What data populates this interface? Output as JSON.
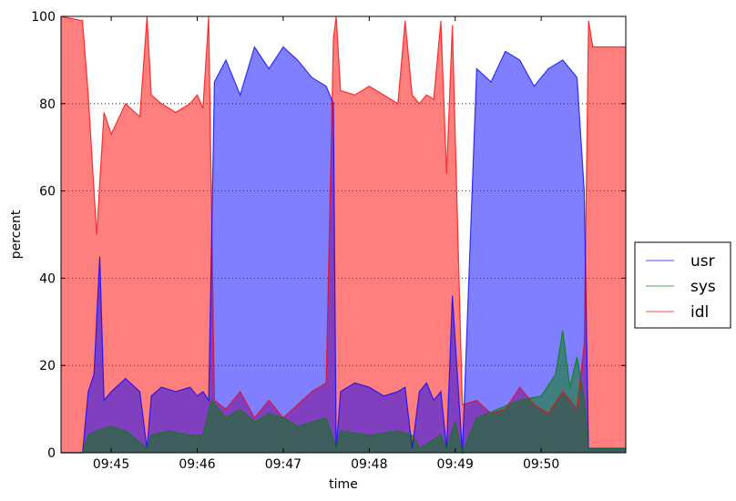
{
  "chart_data": {
    "type": "area",
    "title": "",
    "xlabel": "time",
    "ylabel": "percent",
    "ylim": [
      0,
      100
    ],
    "y_ticks": [
      "0",
      "20",
      "40",
      "60",
      "80",
      "100"
    ],
    "y_tick_values": [
      0,
      20,
      40,
      60,
      80,
      100
    ],
    "x_ticks": [
      "09:45",
      "09:46",
      "09:47",
      "09:48",
      "09:49",
      "09:50"
    ],
    "x_tick_values": [
      "09:45:00",
      "09:46:00",
      "09:47:00",
      "09:48:00",
      "09:49:00",
      "09:50:00"
    ],
    "xlim": [
      "09:44:25",
      "09:50:59"
    ],
    "grid": "horizontal dotted",
    "legend_position": "outside right",
    "series": [
      {
        "name": "usr",
        "color": "#0000ff",
        "x": [
          "09:44:25",
          "09:44:40",
          "09:44:44",
          "09:44:48",
          "09:44:52",
          "09:44:55",
          "09:45:00",
          "09:45:10",
          "09:45:20",
          "09:45:25",
          "09:45:28",
          "09:45:35",
          "09:45:45",
          "09:45:55",
          "09:46:00",
          "09:46:04",
          "09:46:08",
          "09:46:12",
          "09:46:20",
          "09:46:30",
          "09:46:40",
          "09:46:50",
          "09:47:00",
          "09:47:10",
          "09:47:20",
          "09:47:30",
          "09:47:35",
          "09:47:37",
          "09:47:40",
          "09:47:50",
          "09:48:00",
          "09:48:10",
          "09:48:20",
          "09:48:25",
          "09:48:30",
          "09:48:35",
          "09:48:40",
          "09:48:45",
          "09:48:50",
          "09:48:54",
          "09:48:58",
          "09:49:05",
          "09:49:15",
          "09:49:25",
          "09:49:35",
          "09:49:45",
          "09:49:55",
          "09:50:05",
          "09:50:15",
          "09:50:25",
          "09:50:30",
          "09:50:33",
          "09:50:36",
          "09:50:42",
          "09:50:50",
          "09:50:59"
        ],
        "values": [
          0,
          0,
          14,
          18,
          45,
          12,
          14,
          17,
          14,
          1,
          13,
          15,
          14,
          15,
          13,
          14,
          12,
          85,
          90,
          82,
          93,
          88,
          93,
          90,
          86,
          84,
          80,
          1,
          14,
          16,
          15,
          13,
          14,
          15,
          1,
          14,
          16,
          12,
          14,
          1,
          36,
          0,
          88,
          85,
          92,
          90,
          84,
          88,
          90,
          86,
          60,
          1,
          1,
          1,
          1,
          1
        ]
      },
      {
        "name": "sys",
        "color": "#008000",
        "x": [
          "09:44:25",
          "09:44:40",
          "09:44:44",
          "09:44:50",
          "09:45:00",
          "09:45:10",
          "09:45:25",
          "09:45:28",
          "09:45:40",
          "09:45:55",
          "09:46:04",
          "09:46:10",
          "09:46:20",
          "09:46:30",
          "09:46:40",
          "09:46:50",
          "09:47:00",
          "09:47:10",
          "09:47:20",
          "09:47:30",
          "09:47:37",
          "09:47:40",
          "09:48:00",
          "09:48:20",
          "09:48:30",
          "09:48:35",
          "09:48:50",
          "09:48:54",
          "09:49:00",
          "09:49:05",
          "09:49:15",
          "09:49:30",
          "09:49:45",
          "09:50:00",
          "09:50:10",
          "09:50:15",
          "09:50:20",
          "09:50:25",
          "09:50:30",
          "09:50:33",
          "09:50:36",
          "09:50:45",
          "09:50:59"
        ],
        "values": [
          0,
          0,
          4,
          5,
          6,
          5,
          1,
          4,
          5,
          4,
          4,
          12,
          8,
          10,
          7,
          9,
          8,
          6,
          7,
          8,
          1,
          5,
          4,
          5,
          4,
          1,
          4,
          1,
          7,
          0,
          8,
          10,
          12,
          13,
          18,
          28,
          15,
          22,
          12,
          1,
          1,
          1,
          1
        ]
      },
      {
        "name": "idl",
        "color": "#ff0000",
        "x": [
          "09:44:25",
          "09:44:40",
          "09:44:44",
          "09:44:48",
          "09:44:50",
          "09:44:52",
          "09:44:55",
          "09:45:00",
          "09:45:10",
          "09:45:20",
          "09:45:25",
          "09:45:28",
          "09:45:35",
          "09:45:45",
          "09:45:55",
          "09:46:00",
          "09:46:04",
          "09:46:08",
          "09:46:12",
          "09:46:20",
          "09:46:30",
          "09:46:40",
          "09:46:50",
          "09:47:00",
          "09:47:10",
          "09:47:20",
          "09:47:30",
          "09:47:35",
          "09:47:37",
          "09:47:40",
          "09:47:50",
          "09:48:00",
          "09:48:10",
          "09:48:20",
          "09:48:25",
          "09:48:30",
          "09:48:35",
          "09:48:40",
          "09:48:45",
          "09:48:50",
          "09:48:54",
          "09:48:58",
          "09:49:05",
          "09:49:15",
          "09:49:25",
          "09:49:35",
          "09:49:45",
          "09:49:55",
          "09:50:05",
          "09:50:15",
          "09:50:25",
          "09:50:30",
          "09:50:33",
          "09:50:36",
          "09:50:42",
          "09:50:50",
          "09:50:59"
        ],
        "values": [
          100,
          99,
          82,
          60,
          50,
          62,
          78,
          73,
          80,
          77,
          100,
          82,
          80,
          78,
          80,
          82,
          79,
          100,
          12,
          10,
          14,
          8,
          12,
          8,
          11,
          14,
          16,
          95,
          100,
          83,
          82,
          84,
          82,
          80,
          99,
          82,
          80,
          82,
          81,
          99,
          64,
          98,
          11,
          12,
          9,
          10,
          15,
          11,
          9,
          14,
          10,
          25,
          99,
          93,
          93,
          93,
          93
        ]
      }
    ]
  }
}
